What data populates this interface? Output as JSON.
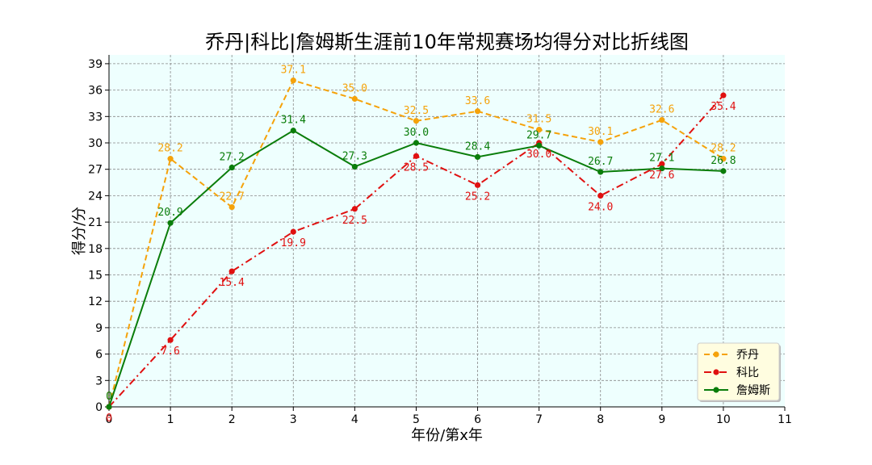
{
  "chart_data": {
    "type": "line",
    "title": "乔丹|科比|詹姆斯生涯前10年常规赛场均得分对比折线图",
    "xlabel": "年份/第x年",
    "ylabel": "得分/分",
    "xlim": [
      0,
      11
    ],
    "ylim": [
      0,
      40
    ],
    "x_ticks": [
      0,
      1,
      2,
      3,
      4,
      5,
      6,
      7,
      8,
      9,
      10,
      11
    ],
    "y_ticks": [
      0,
      3,
      6,
      9,
      12,
      15,
      18,
      21,
      24,
      27,
      30,
      33,
      36,
      39
    ],
    "grid": true,
    "legend_position": "bottom-right",
    "background": "#eefffe",
    "x": [
      0,
      1,
      2,
      3,
      4,
      5,
      6,
      7,
      8,
      9,
      10
    ],
    "series": [
      {
        "name": "乔丹",
        "color": "#f5a20a",
        "style": "dashed",
        "values": [
          0,
          28.2,
          22.7,
          37.1,
          35.0,
          32.5,
          33.6,
          31.5,
          30.1,
          32.6,
          28.2
        ],
        "labels": [
          "0",
          "28.2",
          "22.7",
          "37.1",
          "35.0",
          "32.5",
          "33.6",
          "31.5",
          "30.1",
          "32.6",
          "28.2"
        ],
        "label_side": "above"
      },
      {
        "name": "科比",
        "color": "#e01010",
        "style": "dashdot",
        "values": [
          0,
          7.6,
          15.4,
          19.9,
          22.5,
          28.5,
          25.2,
          30.0,
          24.0,
          27.6,
          35.4
        ],
        "labels": [
          "0",
          "7.6",
          "15.4",
          "19.9",
          "22.5",
          "28.5",
          "25.2",
          "30.0",
          "24.0",
          "27.6",
          "35.4"
        ],
        "label_side": "below"
      },
      {
        "name": "詹姆斯",
        "color": "#0a7d0a",
        "style": "solid",
        "values": [
          0,
          20.9,
          27.2,
          31.4,
          27.3,
          30.0,
          28.4,
          29.7,
          26.7,
          27.1,
          26.8
        ],
        "labels": [
          "0",
          "20.9",
          "27.2",
          "31.4",
          "27.3",
          "30.0",
          "28.4",
          "29.7",
          "26.7",
          "27.1",
          "26.8"
        ],
        "label_side": "above"
      }
    ]
  }
}
